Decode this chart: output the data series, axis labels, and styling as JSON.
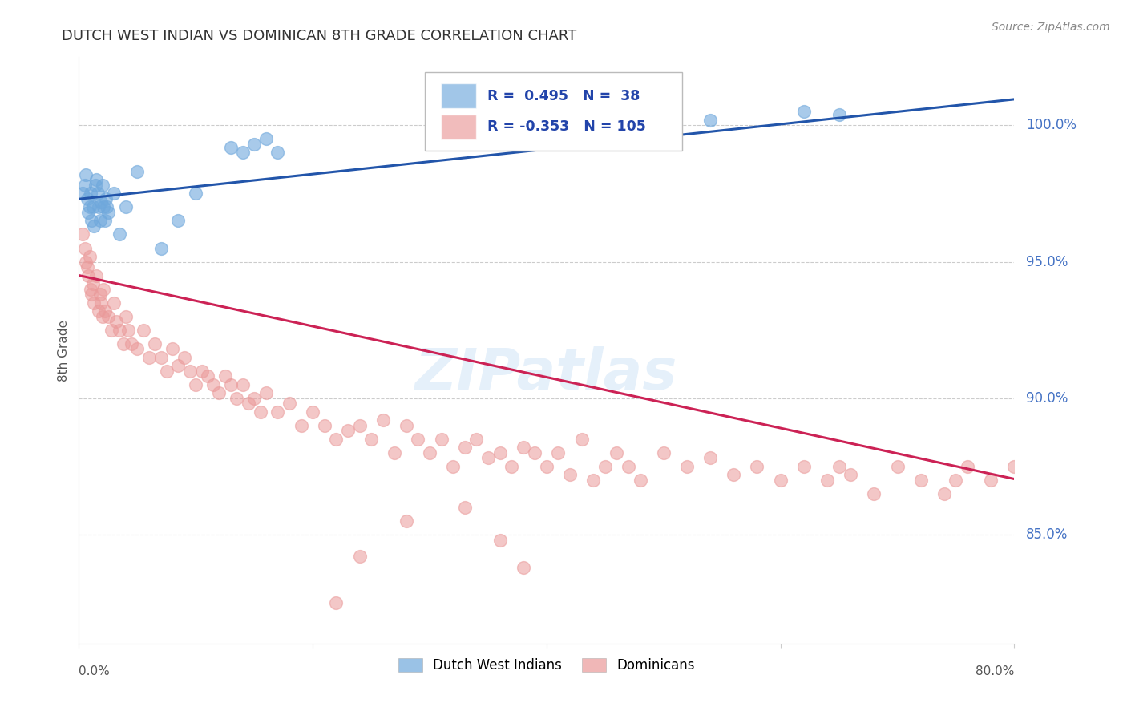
{
  "title": "DUTCH WEST INDIAN VS DOMINICAN 8TH GRADE CORRELATION CHART",
  "source": "Source: ZipAtlas.com",
  "ylabel": "8th Grade",
  "y_ticks": [
    85.0,
    90.0,
    95.0,
    100.0
  ],
  "y_tick_labels": [
    "85.0%",
    "90.0%",
    "95.0%",
    "100.0%"
  ],
  "x_range": [
    0.0,
    80.0
  ],
  "y_range": [
    81.0,
    102.5
  ],
  "blue_color": "#6FA8DC",
  "pink_color": "#EA9999",
  "blue_line_color": "#2255AA",
  "pink_line_color": "#CC2255",
  "legend_label_blue": "Dutch West Indians",
  "legend_label_pink": "Dominicans",
  "watermark": "ZIPatlas",
  "blue_trend_x0": 0.0,
  "blue_trend_y0": 97.3,
  "blue_trend_x1": 70.0,
  "blue_trend_y1": 100.5,
  "pink_trend_x0": 0.0,
  "pink_trend_y0": 94.5,
  "pink_trend_x1": 75.0,
  "pink_trend_y1": 87.5,
  "blue_points_x": [
    0.3,
    0.5,
    0.6,
    0.7,
    0.8,
    0.9,
    1.0,
    1.1,
    1.2,
    1.3,
    1.4,
    1.5,
    1.6,
    1.7,
    1.8,
    1.9,
    2.0,
    2.1,
    2.2,
    2.3,
    2.4,
    2.5,
    3.0,
    3.5,
    4.0,
    5.0,
    7.0,
    8.5,
    10.0,
    13.0,
    14.0,
    15.0,
    16.0,
    17.0,
    46.0,
    54.0,
    62.0,
    65.0
  ],
  "blue_points_y": [
    97.5,
    97.8,
    98.2,
    97.3,
    96.8,
    97.0,
    97.5,
    96.5,
    97.0,
    96.3,
    97.8,
    98.0,
    97.5,
    97.0,
    96.5,
    97.2,
    97.8,
    97.0,
    96.5,
    97.3,
    97.0,
    96.8,
    97.5,
    96.0,
    97.0,
    98.3,
    95.5,
    96.5,
    97.5,
    99.2,
    99.0,
    99.3,
    99.5,
    99.0,
    100.3,
    100.2,
    100.5,
    100.4
  ],
  "pink_points_x": [
    0.3,
    0.5,
    0.6,
    0.7,
    0.8,
    0.9,
    1.0,
    1.1,
    1.2,
    1.3,
    1.5,
    1.7,
    1.8,
    1.9,
    2.0,
    2.1,
    2.2,
    2.5,
    2.8,
    3.0,
    3.2,
    3.5,
    3.8,
    4.0,
    4.2,
    4.5,
    5.0,
    5.5,
    6.0,
    6.5,
    7.0,
    7.5,
    8.0,
    8.5,
    9.0,
    9.5,
    10.0,
    10.5,
    11.0,
    11.5,
    12.0,
    12.5,
    13.0,
    13.5,
    14.0,
    14.5,
    15.0,
    15.5,
    16.0,
    17.0,
    18.0,
    19.0,
    20.0,
    21.0,
    22.0,
    23.0,
    24.0,
    25.0,
    26.0,
    27.0,
    28.0,
    29.0,
    30.0,
    31.0,
    32.0,
    33.0,
    34.0,
    35.0,
    36.0,
    37.0,
    38.0,
    39.0,
    40.0,
    41.0,
    42.0,
    43.0,
    44.0,
    45.0,
    46.0,
    47.0,
    48.0,
    50.0,
    52.0,
    54.0,
    56.0,
    58.0,
    60.0,
    62.0,
    64.0,
    65.0,
    66.0,
    68.0,
    70.0,
    72.0,
    74.0,
    75.0,
    76.0,
    78.0,
    80.0,
    33.0,
    36.0,
    24.0,
    38.0,
    22.0,
    28.0
  ],
  "pink_points_y": [
    96.0,
    95.5,
    95.0,
    94.8,
    94.5,
    95.2,
    94.0,
    93.8,
    94.2,
    93.5,
    94.5,
    93.2,
    93.8,
    93.5,
    93.0,
    94.0,
    93.2,
    93.0,
    92.5,
    93.5,
    92.8,
    92.5,
    92.0,
    93.0,
    92.5,
    92.0,
    91.8,
    92.5,
    91.5,
    92.0,
    91.5,
    91.0,
    91.8,
    91.2,
    91.5,
    91.0,
    90.5,
    91.0,
    90.8,
    90.5,
    90.2,
    90.8,
    90.5,
    90.0,
    90.5,
    89.8,
    90.0,
    89.5,
    90.2,
    89.5,
    89.8,
    89.0,
    89.5,
    89.0,
    88.5,
    88.8,
    89.0,
    88.5,
    89.2,
    88.0,
    89.0,
    88.5,
    88.0,
    88.5,
    87.5,
    88.2,
    88.5,
    87.8,
    88.0,
    87.5,
    88.2,
    88.0,
    87.5,
    88.0,
    87.2,
    88.5,
    87.0,
    87.5,
    88.0,
    87.5,
    87.0,
    88.0,
    87.5,
    87.8,
    87.2,
    87.5,
    87.0,
    87.5,
    87.0,
    87.5,
    87.2,
    86.5,
    87.5,
    87.0,
    86.5,
    87.0,
    87.5,
    87.0,
    87.5,
    86.0,
    84.8,
    84.2,
    83.8,
    82.5,
    85.5
  ]
}
